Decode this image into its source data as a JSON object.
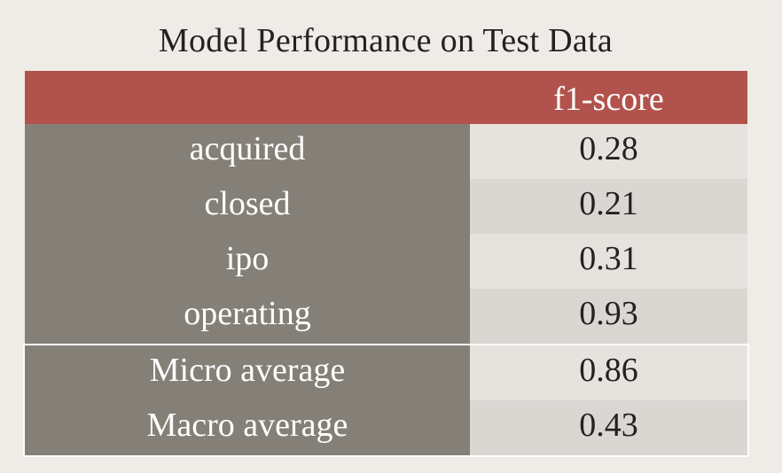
{
  "title": "Model Performance on Test Data",
  "colors": {
    "header": "#b1534c",
    "label_column": "#858077",
    "value_row_light": "#e6e3de",
    "value_row_dark": "#dad7d3",
    "background": "#efece8"
  },
  "chart_data": {
    "type": "table",
    "title": "Model Performance on Test Data",
    "columns": [
      "",
      "f1-score"
    ],
    "rows": [
      {
        "label": "acquired",
        "value": "0.28"
      },
      {
        "label": "closed",
        "value": "0.21"
      },
      {
        "label": "ipo",
        "value": "0.31"
      },
      {
        "label": "operating",
        "value": "0.93"
      }
    ],
    "summary_rows": [
      {
        "label": "Micro average",
        "value": "0.86"
      },
      {
        "label": "Macro average",
        "value": "0.43"
      }
    ]
  }
}
